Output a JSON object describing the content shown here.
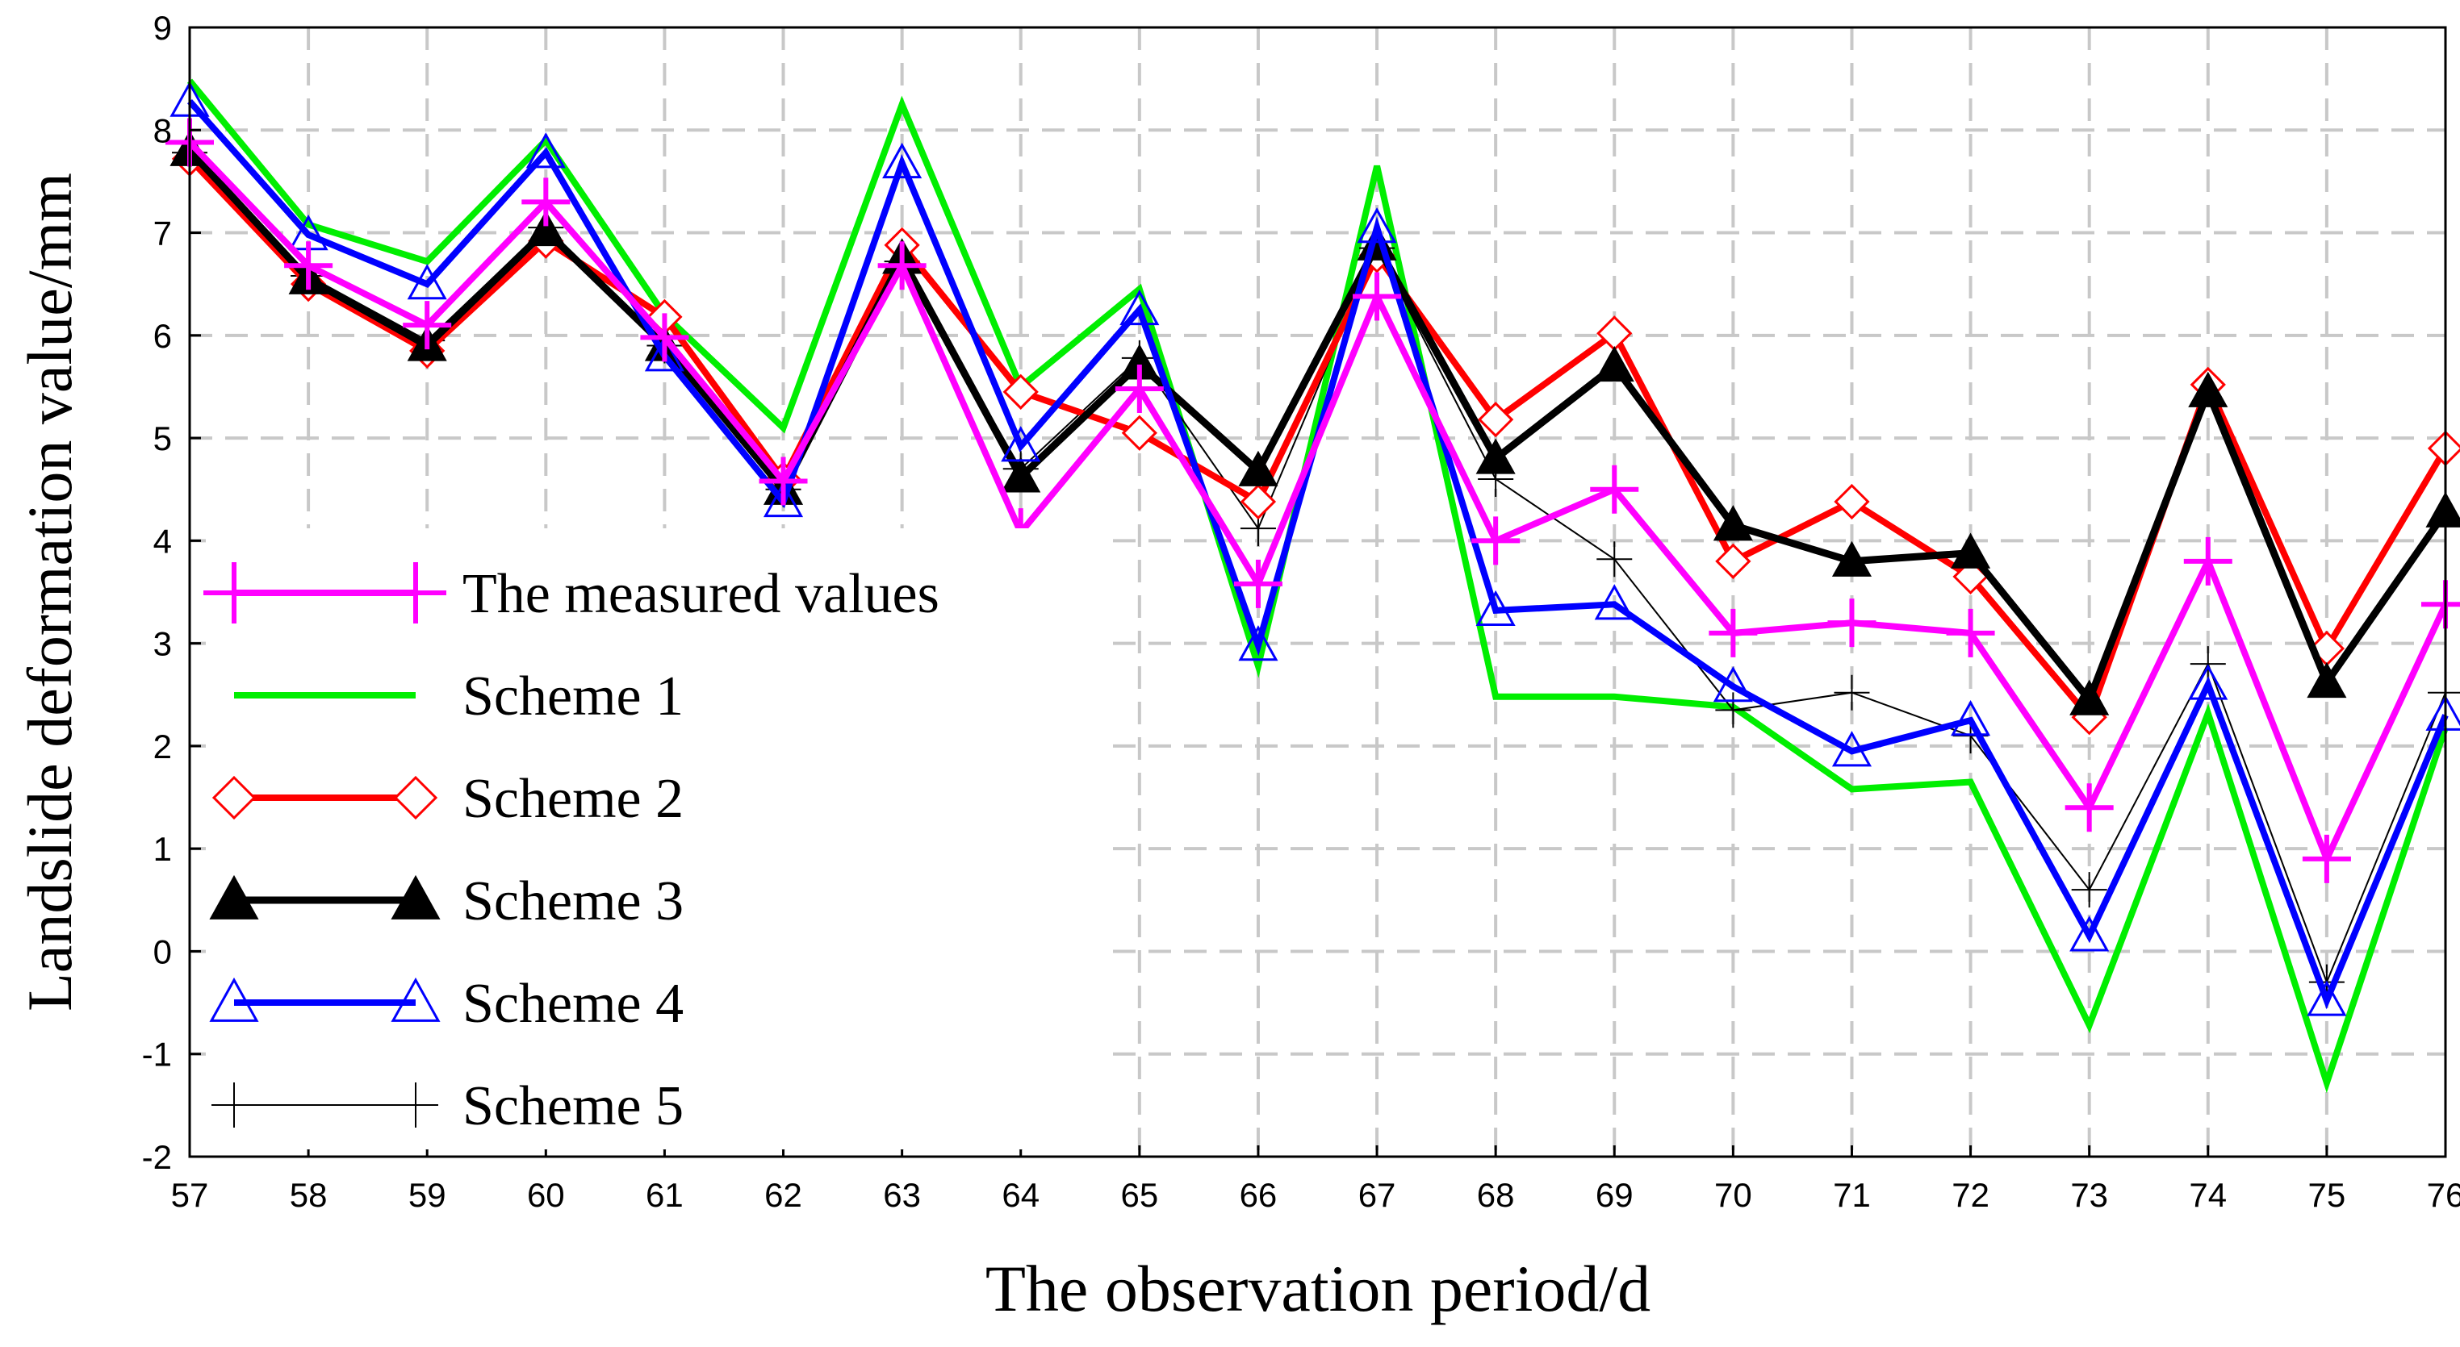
{
  "chart_data": {
    "type": "line",
    "xlabel": "The observation period/d",
    "ylabel": "Landslide deformation value/mm",
    "x": [
      57,
      58,
      59,
      60,
      61,
      62,
      63,
      64,
      65,
      66,
      67,
      68,
      69,
      70,
      71,
      72,
      73,
      74,
      75,
      76
    ],
    "xlim": [
      57,
      76
    ],
    "ylim": [
      -2,
      9
    ],
    "yticks": [
      -2,
      -1,
      0,
      1,
      2,
      3,
      4,
      5,
      6,
      7,
      8,
      9
    ],
    "grid": true,
    "legend_position": "lower-left",
    "series": [
      {
        "name": "The measured values",
        "color": "#ff00ff",
        "marker": "plus",
        "values": [
          7.88,
          6.68,
          6.1,
          7.3,
          5.98,
          4.58,
          6.68,
          4.08,
          5.48,
          3.58,
          6.38,
          4.0,
          4.5,
          3.1,
          3.2,
          3.1,
          1.4,
          3.8,
          0.9,
          3.38
        ]
      },
      {
        "name": "Scheme 1",
        "color": "#00ee00",
        "marker": "none",
        "values": [
          8.48,
          7.08,
          6.72,
          7.9,
          6.2,
          5.1,
          8.25,
          5.5,
          6.45,
          2.78,
          7.65,
          2.48,
          2.48,
          2.38,
          1.58,
          1.65,
          -0.72,
          2.32,
          -1.28,
          2.18
        ]
      },
      {
        "name": "Scheme 2",
        "color": "#ff0000",
        "marker": "diamond",
        "values": [
          7.72,
          6.5,
          5.85,
          6.92,
          6.18,
          4.6,
          6.88,
          5.45,
          5.05,
          4.38,
          6.78,
          5.18,
          6.02,
          3.8,
          4.38,
          3.65,
          2.28,
          5.52,
          2.95,
          4.9
        ]
      },
      {
        "name": "Scheme 3",
        "color": "#000000",
        "marker": "triangle-filled",
        "values": [
          7.8,
          6.55,
          5.9,
          7.02,
          5.9,
          4.5,
          6.75,
          4.62,
          5.72,
          4.68,
          6.88,
          4.8,
          5.7,
          4.15,
          3.8,
          3.88,
          2.45,
          5.45,
          2.62,
          4.28
        ]
      },
      {
        "name": "Scheme 4",
        "color": "#0000ff",
        "marker": "triangle-open",
        "values": [
          8.28,
          6.98,
          6.5,
          7.78,
          5.8,
          4.38,
          7.68,
          4.92,
          6.25,
          2.98,
          7.05,
          3.32,
          3.38,
          2.58,
          1.95,
          2.25,
          0.15,
          2.6,
          -0.48,
          2.3
        ]
      },
      {
        "name": "Scheme 5",
        "color": "#000000",
        "marker": "plus-thin",
        "values": [
          7.78,
          6.58,
          5.95,
          7.05,
          5.9,
          4.5,
          6.72,
          4.7,
          5.78,
          4.12,
          6.85,
          4.6,
          3.82,
          2.35,
          2.52,
          2.1,
          0.6,
          2.8,
          -0.3,
          2.52
        ]
      }
    ]
  }
}
